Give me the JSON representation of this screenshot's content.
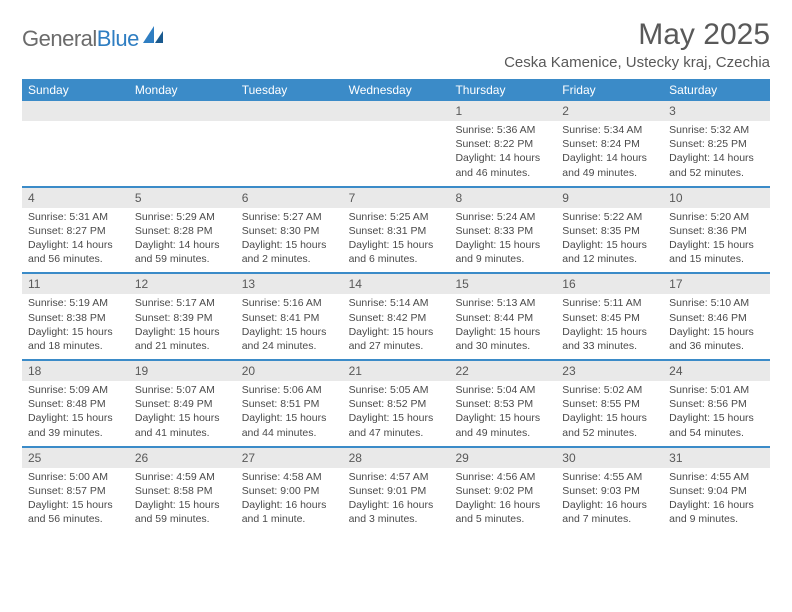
{
  "brand": {
    "part1": "General",
    "part2": "Blue"
  },
  "title": "May 2025",
  "location": "Ceska Kamenice, Ustecky kraj, Czechia",
  "colors": {
    "header_bar": "#3b8bc8",
    "daynum_bg": "#e9e9e9",
    "text": "#595959",
    "brand_gray": "#6b6b6b",
    "brand_blue": "#2f7ec2"
  },
  "days_of_week": [
    "Sunday",
    "Monday",
    "Tuesday",
    "Wednesday",
    "Thursday",
    "Friday",
    "Saturday"
  ],
  "weeks": [
    [
      {
        "num": "",
        "lines": []
      },
      {
        "num": "",
        "lines": []
      },
      {
        "num": "",
        "lines": []
      },
      {
        "num": "",
        "lines": []
      },
      {
        "num": "1",
        "lines": [
          "Sunrise: 5:36 AM",
          "Sunset: 8:22 PM",
          "Daylight: 14 hours and 46 minutes."
        ]
      },
      {
        "num": "2",
        "lines": [
          "Sunrise: 5:34 AM",
          "Sunset: 8:24 PM",
          "Daylight: 14 hours and 49 minutes."
        ]
      },
      {
        "num": "3",
        "lines": [
          "Sunrise: 5:32 AM",
          "Sunset: 8:25 PM",
          "Daylight: 14 hours and 52 minutes."
        ]
      }
    ],
    [
      {
        "num": "4",
        "lines": [
          "Sunrise: 5:31 AM",
          "Sunset: 8:27 PM",
          "Daylight: 14 hours and 56 minutes."
        ]
      },
      {
        "num": "5",
        "lines": [
          "Sunrise: 5:29 AM",
          "Sunset: 8:28 PM",
          "Daylight: 14 hours and 59 minutes."
        ]
      },
      {
        "num": "6",
        "lines": [
          "Sunrise: 5:27 AM",
          "Sunset: 8:30 PM",
          "Daylight: 15 hours and 2 minutes."
        ]
      },
      {
        "num": "7",
        "lines": [
          "Sunrise: 5:25 AM",
          "Sunset: 8:31 PM",
          "Daylight: 15 hours and 6 minutes."
        ]
      },
      {
        "num": "8",
        "lines": [
          "Sunrise: 5:24 AM",
          "Sunset: 8:33 PM",
          "Daylight: 15 hours and 9 minutes."
        ]
      },
      {
        "num": "9",
        "lines": [
          "Sunrise: 5:22 AM",
          "Sunset: 8:35 PM",
          "Daylight: 15 hours and 12 minutes."
        ]
      },
      {
        "num": "10",
        "lines": [
          "Sunrise: 5:20 AM",
          "Sunset: 8:36 PM",
          "Daylight: 15 hours and 15 minutes."
        ]
      }
    ],
    [
      {
        "num": "11",
        "lines": [
          "Sunrise: 5:19 AM",
          "Sunset: 8:38 PM",
          "Daylight: 15 hours and 18 minutes."
        ]
      },
      {
        "num": "12",
        "lines": [
          "Sunrise: 5:17 AM",
          "Sunset: 8:39 PM",
          "Daylight: 15 hours and 21 minutes."
        ]
      },
      {
        "num": "13",
        "lines": [
          "Sunrise: 5:16 AM",
          "Sunset: 8:41 PM",
          "Daylight: 15 hours and 24 minutes."
        ]
      },
      {
        "num": "14",
        "lines": [
          "Sunrise: 5:14 AM",
          "Sunset: 8:42 PM",
          "Daylight: 15 hours and 27 minutes."
        ]
      },
      {
        "num": "15",
        "lines": [
          "Sunrise: 5:13 AM",
          "Sunset: 8:44 PM",
          "Daylight: 15 hours and 30 minutes."
        ]
      },
      {
        "num": "16",
        "lines": [
          "Sunrise: 5:11 AM",
          "Sunset: 8:45 PM",
          "Daylight: 15 hours and 33 minutes."
        ]
      },
      {
        "num": "17",
        "lines": [
          "Sunrise: 5:10 AM",
          "Sunset: 8:46 PM",
          "Daylight: 15 hours and 36 minutes."
        ]
      }
    ],
    [
      {
        "num": "18",
        "lines": [
          "Sunrise: 5:09 AM",
          "Sunset: 8:48 PM",
          "Daylight: 15 hours and 39 minutes."
        ]
      },
      {
        "num": "19",
        "lines": [
          "Sunrise: 5:07 AM",
          "Sunset: 8:49 PM",
          "Daylight: 15 hours and 41 minutes."
        ]
      },
      {
        "num": "20",
        "lines": [
          "Sunrise: 5:06 AM",
          "Sunset: 8:51 PM",
          "Daylight: 15 hours and 44 minutes."
        ]
      },
      {
        "num": "21",
        "lines": [
          "Sunrise: 5:05 AM",
          "Sunset: 8:52 PM",
          "Daylight: 15 hours and 47 minutes."
        ]
      },
      {
        "num": "22",
        "lines": [
          "Sunrise: 5:04 AM",
          "Sunset: 8:53 PM",
          "Daylight: 15 hours and 49 minutes."
        ]
      },
      {
        "num": "23",
        "lines": [
          "Sunrise: 5:02 AM",
          "Sunset: 8:55 PM",
          "Daylight: 15 hours and 52 minutes."
        ]
      },
      {
        "num": "24",
        "lines": [
          "Sunrise: 5:01 AM",
          "Sunset: 8:56 PM",
          "Daylight: 15 hours and 54 minutes."
        ]
      }
    ],
    [
      {
        "num": "25",
        "lines": [
          "Sunrise: 5:00 AM",
          "Sunset: 8:57 PM",
          "Daylight: 15 hours and 56 minutes."
        ]
      },
      {
        "num": "26",
        "lines": [
          "Sunrise: 4:59 AM",
          "Sunset: 8:58 PM",
          "Daylight: 15 hours and 59 minutes."
        ]
      },
      {
        "num": "27",
        "lines": [
          "Sunrise: 4:58 AM",
          "Sunset: 9:00 PM",
          "Daylight: 16 hours and 1 minute."
        ]
      },
      {
        "num": "28",
        "lines": [
          "Sunrise: 4:57 AM",
          "Sunset: 9:01 PM",
          "Daylight: 16 hours and 3 minutes."
        ]
      },
      {
        "num": "29",
        "lines": [
          "Sunrise: 4:56 AM",
          "Sunset: 9:02 PM",
          "Daylight: 16 hours and 5 minutes."
        ]
      },
      {
        "num": "30",
        "lines": [
          "Sunrise: 4:55 AM",
          "Sunset: 9:03 PM",
          "Daylight: 16 hours and 7 minutes."
        ]
      },
      {
        "num": "31",
        "lines": [
          "Sunrise: 4:55 AM",
          "Sunset: 9:04 PM",
          "Daylight: 16 hours and 9 minutes."
        ]
      }
    ]
  ]
}
